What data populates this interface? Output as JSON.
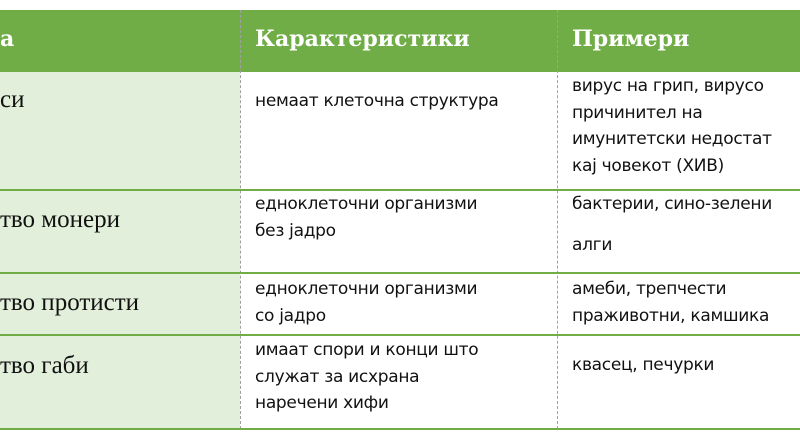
{
  "header": {
    "col1": "а",
    "col2": "Карактеристики",
    "col3": "Примери"
  },
  "rows": [
    {
      "name": "си",
      "characteristics": [
        "немаат клеточна структура"
      ],
      "examples": [
        "вирус на грип, вирусо",
        "причинител на",
        "имунитетски недостат",
        "кај човекот (ХИВ)"
      ]
    },
    {
      "name": "тво монери",
      "characteristics": [
        "едноклеточни организми",
        "без јадро"
      ],
      "examples": [
        "бактерии, сино-зелени",
        "алги"
      ]
    },
    {
      "name": "тво протисти",
      "characteristics": [
        "едноклеточни организми",
        "со јадро"
      ],
      "examples": [
        "амеби, трепчести",
        "праживотни, камшика"
      ]
    },
    {
      "name": "тво габи",
      "characteristics": [
        "имаат спори и конци што",
        "служат за исхрана",
        "наречени хифи"
      ],
      "examples": [
        "квасец, печурки"
      ]
    }
  ],
  "colors": {
    "header": "#70ad47",
    "first_column": "#e2efda",
    "row_border": "#70ad47"
  }
}
